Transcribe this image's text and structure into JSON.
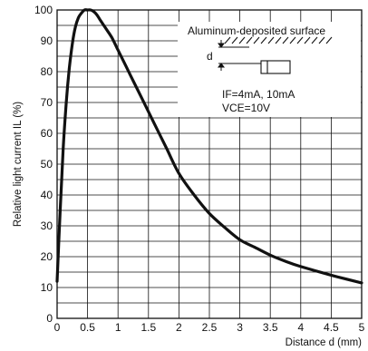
{
  "chart_data": {
    "type": "line",
    "xlabel": "Distance d (mm)",
    "ylabel": "Relative light current IL (%)",
    "xlim": [
      0,
      5
    ],
    "ylim": [
      0,
      100
    ],
    "x_ticks": [
      "0",
      "0.5",
      "1",
      "1.5",
      "2",
      "2.5",
      "3",
      "3.5",
      "4",
      "4.5",
      "5"
    ],
    "y_ticks": [
      "0",
      "10",
      "20",
      "30",
      "40",
      "50",
      "60",
      "70",
      "80",
      "90",
      "100"
    ],
    "x_minor_step": 0.5,
    "y_minor_step": 5,
    "grid": true,
    "series": [
      {
        "x": [
          0,
          0.05,
          0.1,
          0.15,
          0.2,
          0.25,
          0.3,
          0.35,
          0.4,
          0.45,
          0.5,
          0.55,
          0.6,
          0.65,
          0.7,
          0.8,
          0.9,
          1.0,
          1.2,
          1.4,
          1.6,
          1.8,
          2.0,
          2.25,
          2.5,
          2.75,
          3.0,
          3.25,
          3.5,
          3.75,
          4.0,
          4.5,
          5.0
        ],
        "y": [
          12,
          35,
          55,
          70,
          81,
          89,
          94.5,
          97.5,
          99,
          100,
          100,
          100,
          99.5,
          98.5,
          97,
          94,
          91,
          87,
          79,
          71,
          63,
          55,
          47,
          40,
          34,
          29.5,
          25.5,
          23,
          20.5,
          18.5,
          16.8,
          14,
          11.5
        ],
        "color": "#111111"
      }
    ],
    "annotations": {
      "surface_label": "Aluminum-deposited surface",
      "distance_symbol": "d",
      "condition_1": "IF=4mA, 10mA",
      "condition_2": "VCE=10V"
    }
  }
}
